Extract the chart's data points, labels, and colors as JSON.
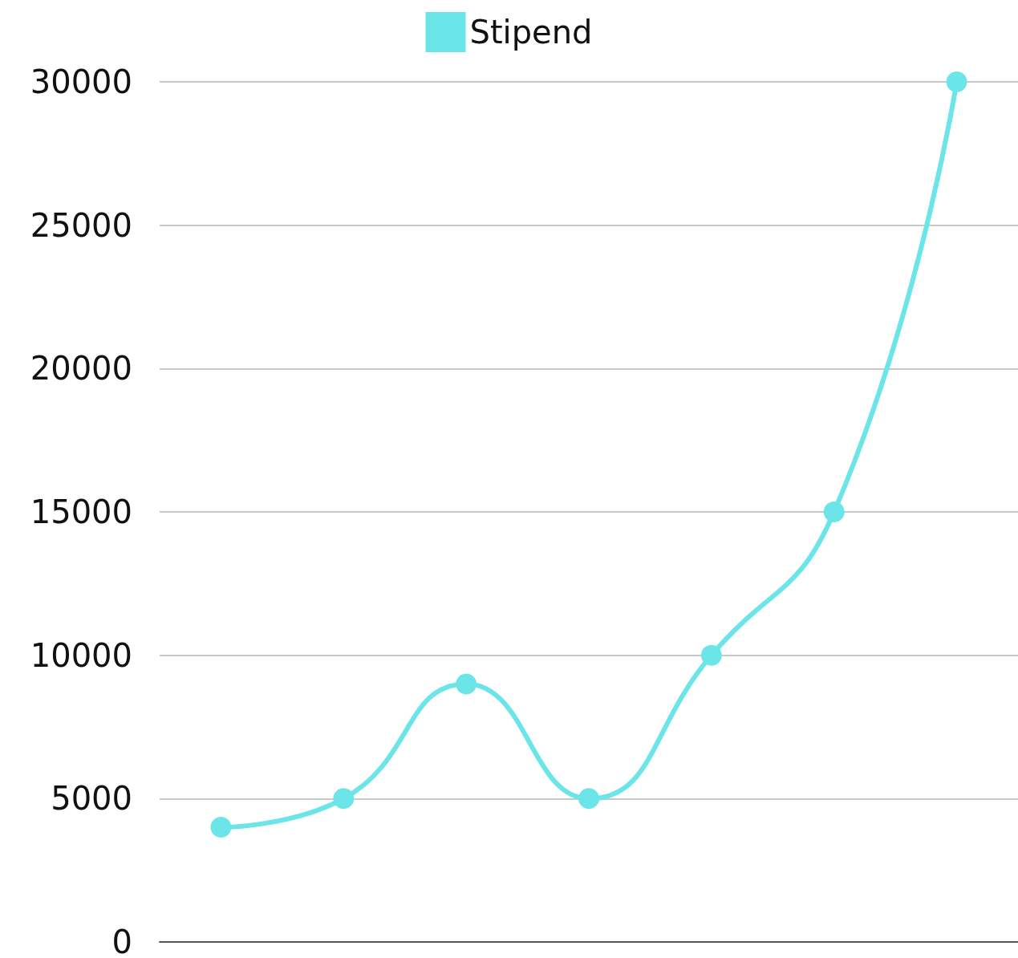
{
  "chart_data": {
    "type": "line",
    "categories": [
      null,
      null,
      null,
      null,
      null,
      null,
      null
    ],
    "series": [
      {
        "name": "Stipend",
        "color": "#6ce5e8",
        "values": [
          4000,
          5000,
          9000,
          5000,
          10000,
          15000,
          30000
        ]
      }
    ],
    "ylim": [
      0,
      30000
    ],
    "yticks": [
      0,
      5000,
      10000,
      15000,
      20000,
      25000,
      30000
    ],
    "grid": "y",
    "legend": "top",
    "marker": "circle",
    "line_style": "solid"
  }
}
